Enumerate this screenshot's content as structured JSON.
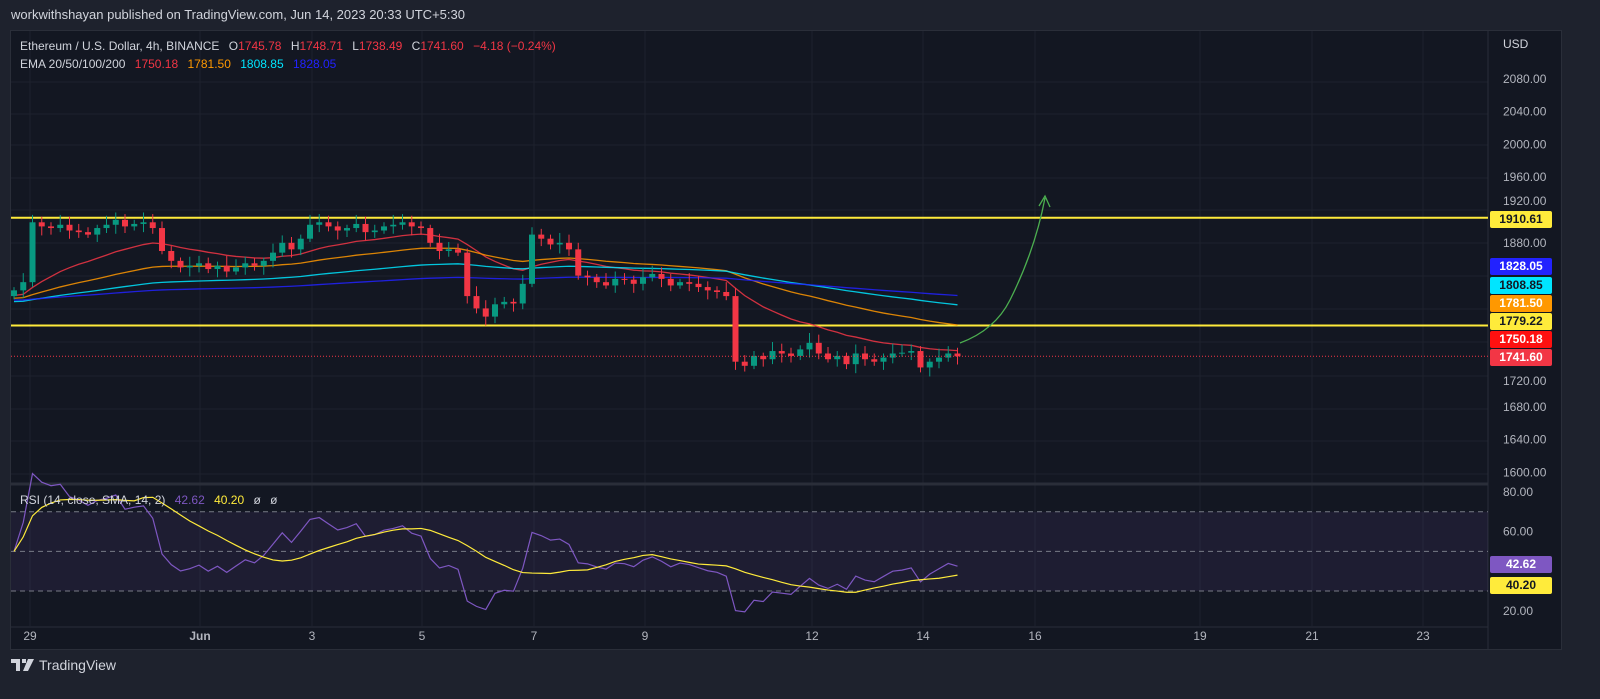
{
  "publisher_line": "workwithshayan published on TradingView.com, Jun 14, 2023 20:33 UTC+5:30",
  "brand": "TradingView",
  "chart_data": [
    {
      "type": "candlestick",
      "symbol": "Ethereum / U.S. Dollar, 4h, BINANCE",
      "ohlc": {
        "o_label": "O",
        "o": "1745.78",
        "h_label": "H",
        "h": "1748.71",
        "l_label": "L",
        "l": "1738.49",
        "c_label": "C",
        "c": "1741.60",
        "change": "−4.18 (−0.24%)"
      },
      "ema_label": "EMA 20/50/100/200",
      "ema": [
        {
          "name": "20",
          "value": "1750.18",
          "color": "#f23645"
        },
        {
          "name": "50",
          "value": "1781.50",
          "color": "#ff9800"
        },
        {
          "name": "100",
          "value": "1808.85",
          "color": "#00e5ff"
        },
        {
          "name": "200",
          "value": "1828.05",
          "color": "#2222ff"
        }
      ],
      "currency": "USD",
      "y_ticks": [
        "2080.00",
        "2040.00",
        "2000.00",
        "1960.00",
        "1920.00",
        "1880.00",
        "1720.00",
        "1680.00",
        "1640.00",
        "1600.00"
      ],
      "ylim": [
        1580,
        2120
      ],
      "x_ticks": [
        "29",
        "Jun",
        "3",
        "5",
        "7",
        "9",
        "12",
        "14",
        "16",
        "19",
        "21",
        "23"
      ],
      "horizontal_levels": [
        {
          "value": "1910.61",
          "color": "#ffeb3b"
        },
        {
          "value": "1779.22",
          "color": "#ffeb3b"
        }
      ],
      "last_price": "1741.60",
      "up_color": "#089981",
      "down_color": "#f23645",
      "closes": [
        1822,
        1832,
        1905,
        1900,
        1898,
        1902,
        1895,
        1893,
        1890,
        1898,
        1902,
        1908,
        1900,
        1903,
        1905,
        1898,
        1870,
        1858,
        1850,
        1852,
        1855,
        1848,
        1852,
        1845,
        1850,
        1855,
        1852,
        1858,
        1868,
        1880,
        1872,
        1885,
        1902,
        1905,
        1900,
        1895,
        1898,
        1903,
        1893,
        1895,
        1900,
        1902,
        1905,
        1900,
        1898,
        1880,
        1870,
        1872,
        1868,
        1815,
        1800,
        1790,
        1805,
        1808,
        1806,
        1830,
        1890,
        1885,
        1878,
        1880,
        1872,
        1840,
        1838,
        1832,
        1828,
        1836,
        1835,
        1830,
        1838,
        1842,
        1836,
        1828,
        1832,
        1830,
        1826,
        1822,
        1820,
        1815,
        1735,
        1730,
        1742,
        1738,
        1748,
        1745,
        1742,
        1750,
        1758,
        1745,
        1738,
        1742,
        1732,
        1745,
        1738,
        1735,
        1740,
        1745,
        1746,
        1748,
        1728,
        1735,
        1740,
        1745,
        1741.6
      ],
      "annotation": "green upward arrow projection"
    },
    {
      "type": "line",
      "title": "RSI (14, close, SMA, 14, 2)",
      "rsi": "42.62",
      "sma": "40.20",
      "extra": [
        "ø",
        "ø"
      ],
      "rsi_color": "#7e57c2",
      "sma_color": "#ffeb3b",
      "y_ticks": [
        "80.00",
        "60.00",
        "20.00"
      ],
      "bands": [
        70,
        50,
        30
      ],
      "ylim": [
        15,
        83
      ]
    }
  ]
}
